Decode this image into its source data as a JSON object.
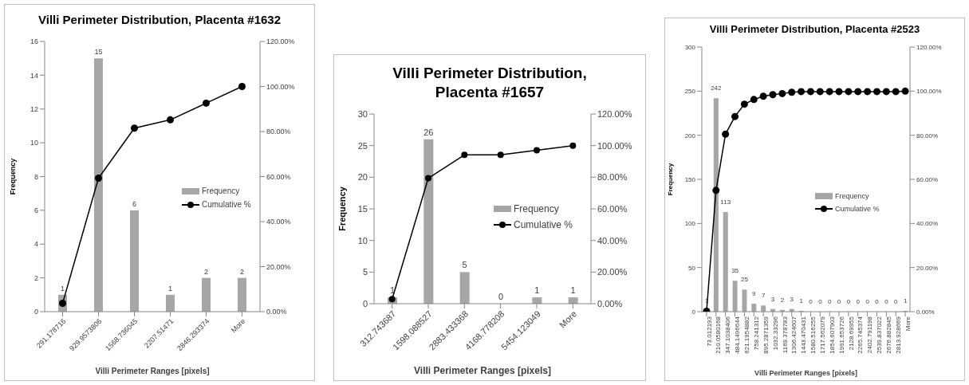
{
  "chart_data": [
    {
      "type": "bar",
      "title": "Villi Perimeter Distribution, Placenta #1632",
      "xlabel": "Villi Perimeter Ranges [pixels]",
      "ylabel": "Frequency",
      "categories": [
        "291.178716",
        "929.9573806",
        "1568.736045",
        "2207.51471",
        "2846.293374",
        "More"
      ],
      "series": [
        {
          "name": "Frequency",
          "color": "#a6a6a6",
          "values": [
            1,
            15,
            6,
            1,
            2,
            2
          ],
          "value_labels": [
            "1",
            "15",
            "6",
            "1",
            "2",
            "2"
          ]
        },
        {
          "name": "Cumulative %",
          "type": "line",
          "axis": "y2",
          "color": "#000000",
          "values": [
            3.7,
            59.3,
            81.5,
            85.2,
            92.6,
            100
          ]
        }
      ],
      "ylim": [
        0,
        16
      ],
      "yticks": [
        0,
        2,
        4,
        6,
        8,
        10,
        12,
        14,
        16
      ],
      "y2lim": [
        0,
        120
      ],
      "y2ticks": [
        {
          "value": 0,
          "label": "0.00%"
        },
        {
          "value": 20,
          "label": "20.00%"
        },
        {
          "value": 40,
          "label": "40.00%"
        },
        {
          "value": 60,
          "label": "60.00%"
        },
        {
          "value": 80,
          "label": "80.00%"
        },
        {
          "value": 100,
          "label": "100.00%"
        },
        {
          "value": 120,
          "label": "120.00%"
        }
      ],
      "grid": false,
      "legend": "right",
      "marker": "circle",
      "line_style": "solid"
    },
    {
      "type": "bar",
      "title": "Villi Perimeter Distribution, Placenta #1657",
      "xlabel": "Villi Perimeter Ranges [pixels]",
      "ylabel": "Frequency",
      "categories": [
        "312.743687",
        "1598.088527",
        "2883.433368",
        "4168.778208",
        "5454.123049",
        "More"
      ],
      "series": [
        {
          "name": "Frequency",
          "color": "#a6a6a6",
          "values": [
            1,
            26,
            5,
            0,
            1,
            1
          ],
          "value_labels": [
            "1",
            "26",
            "5",
            "0",
            "1",
            "1"
          ]
        },
        {
          "name": "Cumulative %",
          "type": "line",
          "axis": "y2",
          "color": "#000000",
          "values": [
            2.9,
            79.4,
            94.1,
            94.1,
            97.1,
            100
          ]
        }
      ],
      "ylim": [
        0,
        30
      ],
      "yticks": [
        0,
        5,
        10,
        15,
        20,
        25,
        30
      ],
      "y2lim": [
        0,
        120
      ],
      "y2ticks": [
        {
          "value": 0,
          "label": "0.00%"
        },
        {
          "value": 20,
          "label": "20.00%"
        },
        {
          "value": 40,
          "label": "40.00%"
        },
        {
          "value": 60,
          "label": "60.00%"
        },
        {
          "value": 80,
          "label": "80.00%"
        },
        {
          "value": 100,
          "label": "100.00%"
        },
        {
          "value": 120,
          "label": "120.00%"
        }
      ],
      "grid": false,
      "legend": "right",
      "marker": "circle",
      "line_style": "solid"
    },
    {
      "type": "bar",
      "title": "Villi Perimeter Distribution, Placenta #2523",
      "xlabel": "Villi Perimeter Ranges [pixels]",
      "ylabel": "Frequency",
      "categories": [
        "73.012193",
        "210.0580168",
        "347.1038406",
        "484.1496644",
        "621.1954882",
        "758.241312",
        "895.2871359",
        "1032.33296",
        "1169.378783",
        "1306.424607",
        "1443.470431",
        "1580.516255",
        "1717.562079",
        "1854.607903",
        "1991.653726",
        "2128.69955",
        "2265.745374",
        "2402.791198",
        "2539.837022",
        "2676.882845",
        "2813.928669",
        "More"
      ],
      "series": [
        {
          "name": "Frequency",
          "color": "#a6a6a6",
          "values": [
            1,
            242,
            113,
            35,
            25,
            9,
            7,
            3,
            2,
            3,
            1,
            0,
            0,
            0,
            0,
            0,
            0,
            0,
            0,
            0,
            0,
            1
          ],
          "value_labels": [
            "1",
            "242",
            "113",
            "35",
            "25",
            "9",
            "7",
            "3",
            "2",
            "3",
            "1",
            "0",
            "0",
            "0",
            "0",
            "0",
            "0",
            "0",
            "0",
            "0",
            "0",
            "1"
          ]
        },
        {
          "name": "Cumulative %",
          "type": "line",
          "axis": "y2",
          "color": "#000000",
          "values": [
            0.2,
            55.0,
            80.5,
            88.5,
            94.1,
            96.2,
            97.7,
            98.4,
            98.9,
            99.5,
            99.8,
            99.8,
            99.8,
            99.8,
            99.8,
            99.8,
            99.8,
            99.8,
            99.8,
            99.8,
            99.8,
            100
          ]
        }
      ],
      "ylim": [
        0,
        300
      ],
      "yticks": [
        0,
        50,
        100,
        150,
        200,
        250,
        300
      ],
      "y2lim": [
        0,
        120
      ],
      "y2ticks": [
        {
          "value": 0,
          "label": "0.00%"
        },
        {
          "value": 20,
          "label": "20.00%"
        },
        {
          "value": 40,
          "label": "40.00%"
        },
        {
          "value": 60,
          "label": "60.00%"
        },
        {
          "value": 80,
          "label": "80.00%"
        },
        {
          "value": 100,
          "label": "100.00%"
        },
        {
          "value": 120,
          "label": "120.00%"
        }
      ],
      "grid": false,
      "legend": "right",
      "marker": "circle",
      "line_style": "solid"
    }
  ]
}
